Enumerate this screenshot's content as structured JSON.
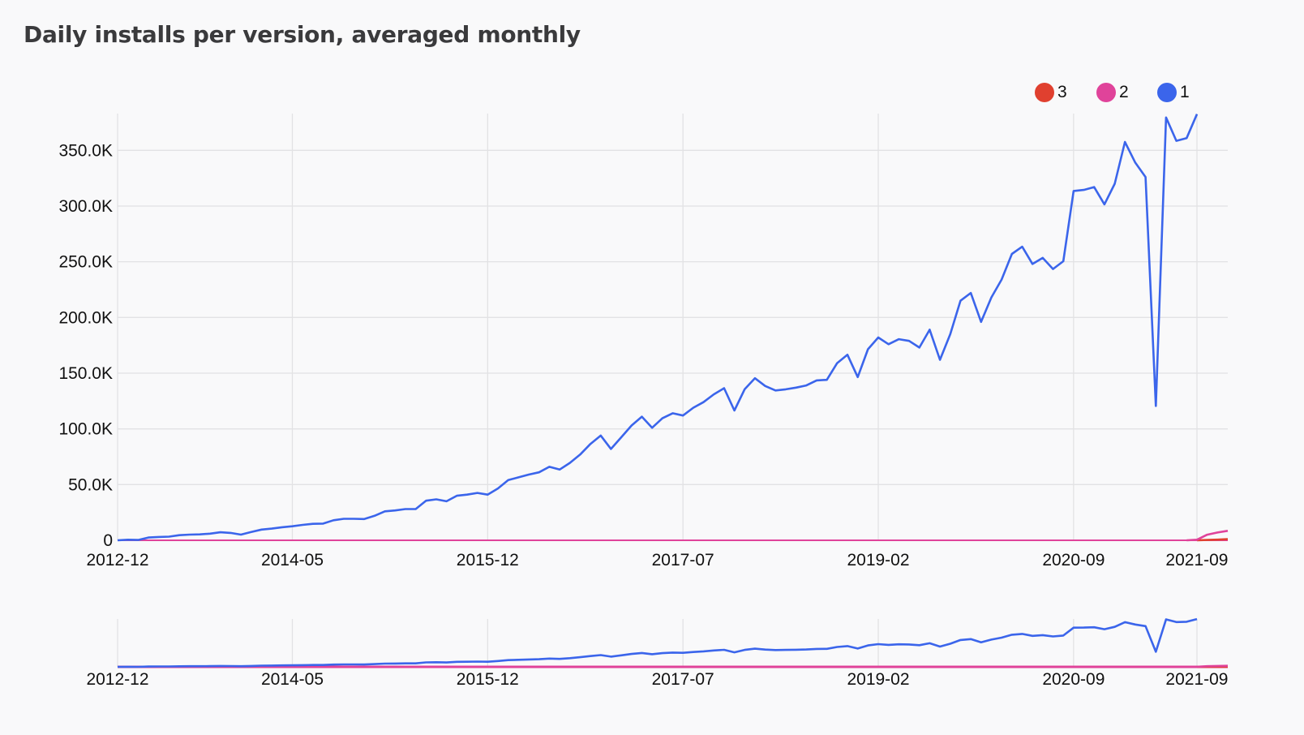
{
  "title": "Daily installs per version, averaged monthly",
  "colors": {
    "v3": "#e0402f",
    "v2": "#e0439a",
    "v1": "#3b65eb",
    "grid": "#e2e2e4",
    "axis_text": "#111111"
  },
  "legend": [
    {
      "label": "3",
      "color": "#e0402f"
    },
    {
      "label": "2",
      "color": "#e0439a"
    },
    {
      "label": "1",
      "color": "#3b65eb"
    }
  ],
  "chart_data": {
    "type": "line",
    "title": "Daily installs per version, averaged monthly",
    "xlabel": "",
    "ylabel": "",
    "x_start": "2012-12",
    "x_end": "2021-12",
    "x_ticks": [
      "2012-12",
      "2014-05",
      "2015-12",
      "2017-07",
      "2019-02",
      "2020-09",
      "2021-09"
    ],
    "y_ticks": [
      {
        "value": 0,
        "label": "0"
      },
      {
        "value": 50000,
        "label": "50.0K"
      },
      {
        "value": 100000,
        "label": "100.0K"
      },
      {
        "value": 150000,
        "label": "150.0K"
      },
      {
        "value": 200000,
        "label": "200.0K"
      },
      {
        "value": 250000,
        "label": "250.0K"
      },
      {
        "value": 300000,
        "label": "300.0K"
      },
      {
        "value": 350000,
        "label": "350.0K"
      }
    ],
    "ylim": [
      0,
      383000
    ],
    "grid": true,
    "legend_position": "top-right",
    "series": [
      {
        "name": "3",
        "points": [
          [
            "2021-09",
            0
          ],
          [
            "2021-10",
            300
          ],
          [
            "2021-11",
            600
          ],
          [
            "2021-12",
            1000
          ]
        ]
      },
      {
        "name": "2",
        "points": [
          [
            "2021-08",
            0
          ],
          [
            "2021-09",
            500
          ],
          [
            "2021-10",
            5000
          ],
          [
            "2021-11",
            7000
          ],
          [
            "2021-12",
            8500
          ]
        ]
      },
      {
        "name": "1",
        "points": [
          [
            "2012-12",
            0
          ],
          [
            "2013-01",
            500
          ],
          [
            "2013-02",
            300
          ],
          [
            "2013-03",
            2500
          ],
          [
            "2013-04",
            3000
          ],
          [
            "2013-05",
            3300
          ],
          [
            "2013-06",
            4600
          ],
          [
            "2013-07",
            5100
          ],
          [
            "2013-08",
            5300
          ],
          [
            "2013-09",
            6000
          ],
          [
            "2013-10",
            7200
          ],
          [
            "2013-11",
            6600
          ],
          [
            "2013-12",
            5100
          ],
          [
            "2014-01",
            7400
          ],
          [
            "2014-02",
            9600
          ],
          [
            "2014-03",
            10500
          ],
          [
            "2014-04",
            11700
          ],
          [
            "2014-05",
            12600
          ],
          [
            "2014-06",
            13800
          ],
          [
            "2014-07",
            14800
          ],
          [
            "2014-08",
            15000
          ],
          [
            "2014-09",
            18000
          ],
          [
            "2014-10",
            19300
          ],
          [
            "2014-11",
            19300
          ],
          [
            "2014-12",
            19100
          ],
          [
            "2015-01",
            22000
          ],
          [
            "2015-02",
            26000
          ],
          [
            "2015-03",
            26800
          ],
          [
            "2015-04",
            28000
          ],
          [
            "2015-05",
            28000
          ],
          [
            "2015-06",
            35500
          ],
          [
            "2015-07",
            36800
          ],
          [
            "2015-08",
            35000
          ],
          [
            "2015-09",
            40000
          ],
          [
            "2015-10",
            41000
          ],
          [
            "2015-11",
            42500
          ],
          [
            "2015-12",
            41000
          ],
          [
            "2016-01",
            46500
          ],
          [
            "2016-02",
            54000
          ],
          [
            "2016-03",
            56500
          ],
          [
            "2016-04",
            59000
          ],
          [
            "2016-05",
            61000
          ],
          [
            "2016-06",
            66000
          ],
          [
            "2016-07",
            63500
          ],
          [
            "2016-08",
            69500
          ],
          [
            "2016-09",
            77000
          ],
          [
            "2016-10",
            86500
          ],
          [
            "2016-11",
            94000
          ],
          [
            "2016-12",
            82000
          ],
          [
            "2017-01",
            92500
          ],
          [
            "2017-02",
            103000
          ],
          [
            "2017-03",
            111000
          ],
          [
            "2017-04",
            101000
          ],
          [
            "2017-05",
            109500
          ],
          [
            "2017-06",
            114000
          ],
          [
            "2017-07",
            112000
          ],
          [
            "2017-08",
            119000
          ],
          [
            "2017-09",
            124000
          ],
          [
            "2017-10",
            131000
          ],
          [
            "2017-11",
            136500
          ],
          [
            "2017-12",
            116500
          ],
          [
            "2018-01",
            135500
          ],
          [
            "2018-02",
            145500
          ],
          [
            "2018-03",
            138500
          ],
          [
            "2018-04",
            134500
          ],
          [
            "2018-05",
            135500
          ],
          [
            "2018-06",
            137000
          ],
          [
            "2018-07",
            139000
          ],
          [
            "2018-08",
            143500
          ],
          [
            "2018-09",
            144000
          ],
          [
            "2018-10",
            159000
          ],
          [
            "2018-11",
            166500
          ],
          [
            "2018-12",
            146500
          ],
          [
            "2019-01",
            171500
          ],
          [
            "2019-02",
            182000
          ],
          [
            "2019-03",
            176000
          ],
          [
            "2019-04",
            180500
          ],
          [
            "2019-05",
            179000
          ],
          [
            "2019-06",
            173000
          ],
          [
            "2019-07",
            189000
          ],
          [
            "2019-08",
            162000
          ],
          [
            "2019-09",
            185000
          ],
          [
            "2019-10",
            215000
          ],
          [
            "2019-11",
            222000
          ],
          [
            "2019-12",
            196000
          ],
          [
            "2020-01",
            218000
          ],
          [
            "2020-02",
            234000
          ],
          [
            "2020-03",
            257000
          ],
          [
            "2020-04",
            263500
          ],
          [
            "2020-05",
            248000
          ],
          [
            "2020-06",
            253500
          ],
          [
            "2020-07",
            243500
          ],
          [
            "2020-08",
            250500
          ],
          [
            "2020-09",
            313500
          ],
          [
            "2020-10",
            314500
          ],
          [
            "2020-11",
            317000
          ],
          [
            "2020-12",
            301500
          ],
          [
            "2021-01",
            320000
          ],
          [
            "2021-02",
            357500
          ],
          [
            "2021-03",
            339000
          ],
          [
            "2021-04",
            326000
          ],
          [
            "2021-05",
            120500
          ],
          [
            "2021-06",
            379500
          ],
          [
            "2021-07",
            358500
          ],
          [
            "2021-08",
            361000
          ],
          [
            "2021-09",
            382500
          ]
        ]
      }
    ]
  }
}
